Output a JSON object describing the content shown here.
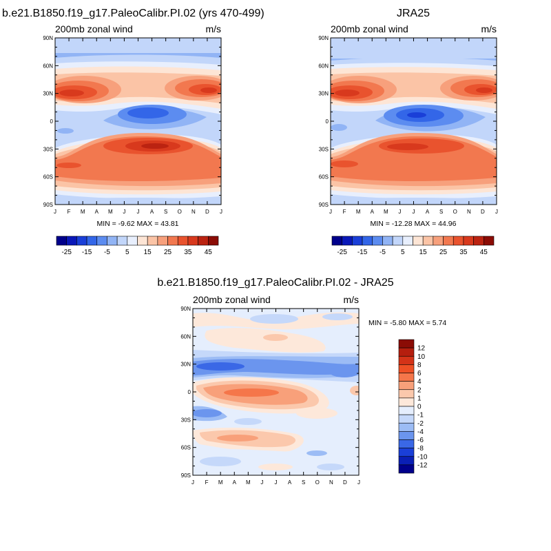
{
  "panels": [
    {
      "id": "model",
      "title": "b.e21.B1850.f19_g17.PaleoCalibr.PI.02 (yrs 470-499)",
      "left_label": "200mb zonal wind",
      "right_label": "m/s",
      "stats": "MIN =  -9.62 MAX =  43.81"
    },
    {
      "id": "obs",
      "title": "JRA25",
      "left_label": "200mb zonal wind",
      "right_label": "m/s",
      "stats": "MIN = -12.28 MAX =  44.96"
    },
    {
      "id": "diff",
      "title": "b.e21.B1850.f19_g17.PaleoCalibr.PI.02 - JRA25",
      "left_label": "200mb zonal wind",
      "right_label": "m/s",
      "stats": "MIN =  -5.80 MAX =   5.74"
    }
  ],
  "chart_data": [
    {
      "type": "heatmap",
      "title": "b.e21.B1850.f19_g17.PaleoCalibr.PI.02 (yrs 470-499)",
      "variable": "200mb zonal wind",
      "units": "m/s",
      "x": [
        "J",
        "F",
        "M",
        "A",
        "M",
        "J",
        "J",
        "A",
        "S",
        "O",
        "N",
        "D",
        "J"
      ],
      "y_labels": [
        "90N",
        "60N",
        "30N",
        "0",
        "30S",
        "60S",
        "90S"
      ],
      "y_values": [
        90,
        60,
        30,
        0,
        -30,
        -60,
        -90
      ],
      "min": -9.62,
      "max": 43.81,
      "colorbar_labels": [
        "-25",
        "-15",
        "-5",
        "5",
        "15",
        "25",
        "35",
        "45"
      ],
      "levels": [
        -30,
        -25,
        -20,
        -15,
        -10,
        -5,
        0,
        5,
        10,
        15,
        20,
        25,
        30,
        35,
        40,
        45,
        50
      ]
    },
    {
      "type": "heatmap",
      "title": "JRA25",
      "variable": "200mb zonal wind",
      "units": "m/s",
      "x": [
        "J",
        "F",
        "M",
        "A",
        "M",
        "J",
        "J",
        "A",
        "S",
        "O",
        "N",
        "D",
        "J"
      ],
      "y_labels": [
        "90N",
        "60N",
        "30N",
        "0",
        "30S",
        "60S",
        "90S"
      ],
      "y_values": [
        90,
        60,
        30,
        0,
        -30,
        -60,
        -90
      ],
      "min": -12.28,
      "max": 44.96,
      "colorbar_labels": [
        "-25",
        "-15",
        "-5",
        "5",
        "15",
        "25",
        "35",
        "45"
      ],
      "levels": [
        -30,
        -25,
        -20,
        -15,
        -10,
        -5,
        0,
        5,
        10,
        15,
        20,
        25,
        30,
        35,
        40,
        45,
        50
      ]
    },
    {
      "type": "heatmap",
      "title": "b.e21.B1850.f19_g17.PaleoCalibr.PI.02 - JRA25",
      "variable": "200mb zonal wind",
      "units": "m/s",
      "x": [
        "J",
        "F",
        "M",
        "A",
        "M",
        "J",
        "J",
        "A",
        "S",
        "O",
        "N",
        "D",
        "J"
      ],
      "y_labels": [
        "90N",
        "60N",
        "30N",
        "0",
        "30S",
        "60S",
        "90S"
      ],
      "y_values": [
        90,
        60,
        30,
        0,
        -30,
        -60,
        -90
      ],
      "min": -5.8,
      "max": 5.74,
      "colorbar_labels": [
        "12",
        "10",
        "8",
        "6",
        "4",
        "2",
        "1",
        "0",
        "-1",
        "-2",
        "-4",
        "-6",
        "-8",
        "-10",
        "-12"
      ]
    }
  ],
  "colors": {
    "cb_main": [
      "#00008b",
      "#0a18b8",
      "#1a3fd8",
      "#3366e8",
      "#5c8cf0",
      "#91b4f5",
      "#c2d6fa",
      "#e8effd",
      "#fde5d5",
      "#fbc4a6",
      "#f7a07c",
      "#f2784f",
      "#e9532e",
      "#d8391d",
      "#bb2311",
      "#8b0c05"
    ],
    "cb_diff": [
      "#8b0c05",
      "#b51e0e",
      "#d43318",
      "#ee5025",
      "#f5764a",
      "#f8a07a",
      "#fbc8ac",
      "#fde8da",
      "#e5eefd",
      "#c5d8fa",
      "#9cbcf5",
      "#6b95ee",
      "#3a68e6",
      "#1a3fd8",
      "#0a1fb5",
      "#00008b"
    ]
  }
}
